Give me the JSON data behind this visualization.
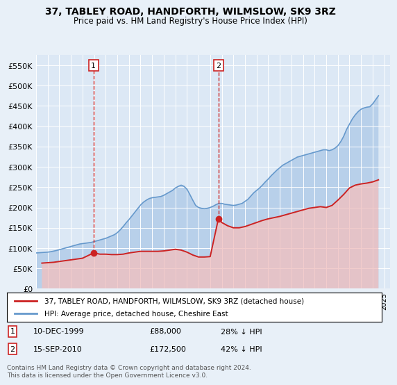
{
  "title": "37, TABLEY ROAD, HANDFORTH, WILMSLOW, SK9 3RZ",
  "subtitle": "Price paid vs. HM Land Registry's House Price Index (HPI)",
  "ylim": [
    0,
    575000
  ],
  "xlim_start": 1995.0,
  "xlim_end": 2025.5,
  "background_color": "#e8f0f8",
  "plot_bg_color": "#dce8f5",
  "legend_label_red": "37, TABLEY ROAD, HANDFORTH, WILMSLOW, SK9 3RZ (detached house)",
  "legend_label_blue": "HPI: Average price, detached house, Cheshire East",
  "sale1_date": "10-DEC-1999",
  "sale1_price": 88000,
  "sale1_x": 1999.95,
  "sale2_date": "15-SEP-2010",
  "sale2_price": 172500,
  "sale2_x": 2010.71,
  "footer": "Contains HM Land Registry data © Crown copyright and database right 2024.\nThis data is licensed under the Open Government Licence v3.0.",
  "hpi_years": [
    1995.0,
    1995.25,
    1995.5,
    1995.75,
    1996.0,
    1996.25,
    1996.5,
    1996.75,
    1997.0,
    1997.25,
    1997.5,
    1997.75,
    1998.0,
    1998.25,
    1998.5,
    1998.75,
    1999.0,
    1999.25,
    1999.5,
    1999.75,
    2000.0,
    2000.25,
    2000.5,
    2000.75,
    2001.0,
    2001.25,
    2001.5,
    2001.75,
    2002.0,
    2002.25,
    2002.5,
    2002.75,
    2003.0,
    2003.25,
    2003.5,
    2003.75,
    2004.0,
    2004.25,
    2004.5,
    2004.75,
    2005.0,
    2005.25,
    2005.5,
    2005.75,
    2006.0,
    2006.25,
    2006.5,
    2006.75,
    2007.0,
    2007.25,
    2007.5,
    2007.75,
    2008.0,
    2008.25,
    2008.5,
    2008.75,
    2009.0,
    2009.25,
    2009.5,
    2009.75,
    2010.0,
    2010.25,
    2010.5,
    2010.75,
    2011.0,
    2011.25,
    2011.5,
    2011.75,
    2012.0,
    2012.25,
    2012.5,
    2012.75,
    2013.0,
    2013.25,
    2013.5,
    2013.75,
    2014.0,
    2014.25,
    2014.5,
    2014.75,
    2015.0,
    2015.25,
    2015.5,
    2015.75,
    2016.0,
    2016.25,
    2016.5,
    2016.75,
    2017.0,
    2017.25,
    2017.5,
    2017.75,
    2018.0,
    2018.25,
    2018.5,
    2018.75,
    2019.0,
    2019.25,
    2019.5,
    2019.75,
    2020.0,
    2020.25,
    2020.5,
    2020.75,
    2021.0,
    2021.25,
    2021.5,
    2021.75,
    2022.0,
    2022.25,
    2022.5,
    2022.75,
    2023.0,
    2023.25,
    2023.5,
    2023.75,
    2024.0,
    2024.25,
    2024.5
  ],
  "hpi_values": [
    88000,
    88500,
    89000,
    89500,
    90000,
    91000,
    92500,
    94000,
    96000,
    98000,
    100000,
    102000,
    104000,
    106000,
    108000,
    110000,
    111000,
    112000,
    113000,
    114000,
    116000,
    118000,
    120000,
    122000,
    124000,
    127000,
    130000,
    133000,
    138000,
    145000,
    153000,
    162000,
    170000,
    179000,
    188000,
    197000,
    206000,
    213000,
    218000,
    222000,
    224000,
    225000,
    226000,
    227000,
    230000,
    234000,
    238000,
    242000,
    248000,
    252000,
    255000,
    252000,
    245000,
    232000,
    218000,
    205000,
    200000,
    198000,
    197000,
    198000,
    200000,
    203000,
    207000,
    210000,
    210000,
    208000,
    207000,
    206000,
    205000,
    206000,
    208000,
    210000,
    215000,
    220000,
    228000,
    236000,
    242000,
    248000,
    255000,
    263000,
    270000,
    278000,
    285000,
    292000,
    298000,
    304000,
    308000,
    312000,
    316000,
    320000,
    324000,
    326000,
    328000,
    330000,
    332000,
    334000,
    336000,
    338000,
    340000,
    342000,
    342000,
    340000,
    342000,
    346000,
    352000,
    362000,
    375000,
    392000,
    405000,
    418000,
    428000,
    436000,
    442000,
    445000,
    447000,
    448000,
    455000,
    465000,
    475000
  ],
  "red_years": [
    1995.5,
    1996.0,
    1996.5,
    1997.0,
    1997.5,
    1998.0,
    1998.5,
    1999.0,
    1999.95,
    2000.5,
    2001.0,
    2001.5,
    2002.0,
    2002.5,
    2003.0,
    2003.5,
    2004.0,
    2004.5,
    2005.0,
    2005.5,
    2006.0,
    2006.5,
    2007.0,
    2007.5,
    2008.0,
    2008.5,
    2009.0,
    2009.5,
    2010.0,
    2010.71,
    2011.0,
    2011.5,
    2012.0,
    2012.5,
    2013.0,
    2013.5,
    2014.0,
    2014.5,
    2015.0,
    2015.5,
    2016.0,
    2016.5,
    2017.0,
    2017.5,
    2018.0,
    2018.5,
    2019.0,
    2019.5,
    2020.0,
    2020.5,
    2021.0,
    2021.5,
    2022.0,
    2022.5,
    2023.0,
    2023.5,
    2024.0,
    2024.5
  ],
  "red_values": [
    63000,
    64000,
    65000,
    67000,
    69000,
    71000,
    73000,
    75000,
    88000,
    85000,
    85000,
    84000,
    84000,
    85000,
    88000,
    90000,
    92000,
    92000,
    92000,
    92000,
    93000,
    95000,
    97000,
    95000,
    90000,
    83000,
    78000,
    78000,
    79000,
    172500,
    163000,
    155000,
    150000,
    150000,
    153000,
    158000,
    163000,
    168000,
    172000,
    175000,
    178000,
    182000,
    186000,
    190000,
    194000,
    198000,
    200000,
    202000,
    200000,
    205000,
    218000,
    232000,
    248000,
    255000,
    258000,
    260000,
    263000,
    268000
  ]
}
